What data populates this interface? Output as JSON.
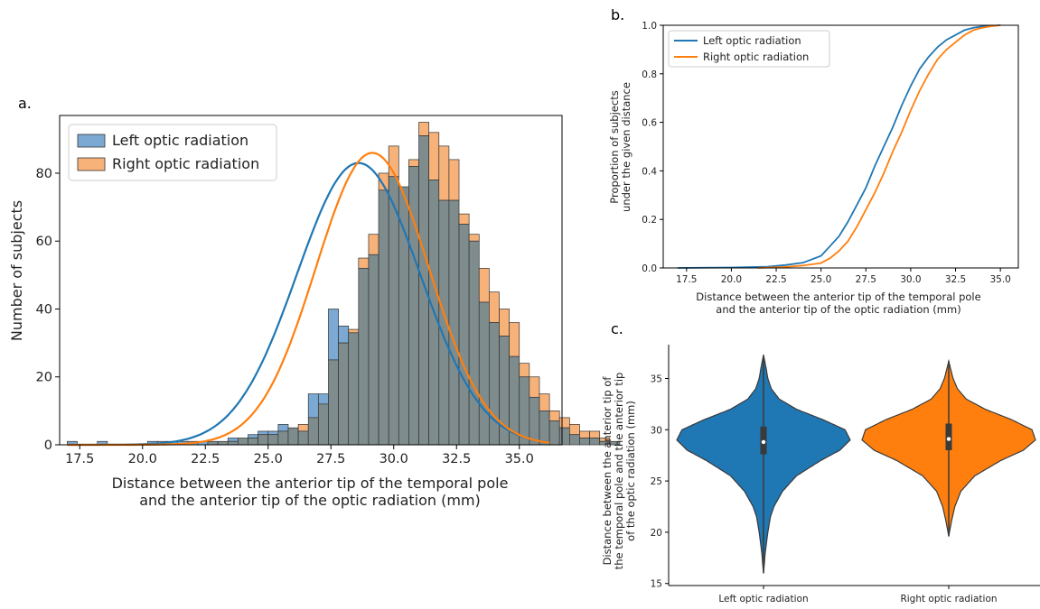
{
  "colors": {
    "left": "#1f77b4",
    "right": "#ff7f0e",
    "left_fill": "#7ba9d3",
    "right_fill": "#f7b27a",
    "overlap": "#7f8c8d"
  },
  "chart_data": [
    {
      "panel": "a.",
      "type": "bar",
      "subtype": "histogram with KDE",
      "xlabel": [
        "Distance between the anterior tip of the temporal pole",
        "and the anterior tip of the optic radiation (mm)"
      ],
      "ylabel": "Number of subjects",
      "xlim": [
        16.7,
        36.7
      ],
      "ylim": [
        0,
        97
      ],
      "x_ticks": [
        "17.5",
        "20.0",
        "22.5",
        "25.0",
        "27.5",
        "30.0",
        "32.5",
        "35.0"
      ],
      "y_ticks": [
        "0",
        "20",
        "40",
        "60",
        "80"
      ],
      "legend_position": "upper-left",
      "bin_start": 17.0,
      "bin_width": 0.4,
      "series": [
        {
          "name": "Left optic radiation",
          "color_key": "left",
          "values": [
            1,
            0,
            0,
            1,
            0,
            0,
            0,
            0,
            1,
            1,
            1,
            1,
            1,
            1,
            1,
            1,
            2,
            2,
            3,
            4,
            4,
            6,
            5,
            4,
            15,
            15,
            40,
            35,
            33,
            52,
            56,
            75,
            79,
            76,
            82,
            91,
            78,
            72,
            72,
            65,
            60,
            42,
            36,
            32,
            26,
            20,
            14,
            10,
            7,
            5,
            3,
            2,
            2,
            1,
            1,
            0
          ]
        },
        {
          "name": "Right optic radiation",
          "color_key": "right",
          "values": [
            0,
            0,
            0,
            0,
            0,
            0,
            0,
            0,
            0,
            0,
            0,
            0,
            0,
            0,
            1,
            1,
            1,
            2,
            2,
            3,
            3,
            4,
            5,
            6,
            8,
            12,
            25,
            30,
            34,
            55,
            62,
            80,
            88,
            76,
            84,
            95,
            92,
            88,
            84,
            68,
            62,
            52,
            45,
            40,
            36,
            24,
            20,
            15,
            10,
            8,
            6,
            4,
            4,
            2,
            1,
            0
          ]
        }
      ],
      "kde": [
        {
          "name": "Left optic radiation",
          "mean": 28.6,
          "sd": 2.45,
          "peak": 83
        },
        {
          "name": "Right optic radiation",
          "mean": 29.15,
          "sd": 2.25,
          "peak": 86
        }
      ]
    },
    {
      "panel": "b.",
      "type": "line",
      "subtype": "cumulative distribution",
      "xlabel": [
        "Distance between the anterior tip of the temporal pole",
        "and the anterior tip of the optic radiation (mm)"
      ],
      "ylabel": [
        "Proportion of subjects",
        "under the given distance"
      ],
      "xlim": [
        16.2,
        36.0
      ],
      "ylim": [
        0,
        1
      ],
      "x_ticks": [
        "17.5",
        "20.0",
        "22.5",
        "25.0",
        "27.5",
        "30.0",
        "32.5",
        "35.0"
      ],
      "y_ticks": [
        "0.0",
        "0.2",
        "0.4",
        "0.6",
        "0.8",
        "1.0"
      ],
      "legend_position": "upper-left",
      "series": [
        {
          "name": "Left optic radiation",
          "color_key": "left",
          "x": [
            17.0,
            20.0,
            22.0,
            23.0,
            24.0,
            25.0,
            25.5,
            26.0,
            26.5,
            27.0,
            27.5,
            28.0,
            28.5,
            29.0,
            29.5,
            30.0,
            30.5,
            31.0,
            31.5,
            32.0,
            32.5,
            33.0,
            33.5,
            34.0,
            35.0
          ],
          "y": [
            0.0,
            0.002,
            0.005,
            0.012,
            0.022,
            0.05,
            0.09,
            0.13,
            0.19,
            0.26,
            0.33,
            0.42,
            0.5,
            0.58,
            0.67,
            0.75,
            0.82,
            0.87,
            0.91,
            0.94,
            0.96,
            0.98,
            0.99,
            0.995,
            1.0
          ]
        },
        {
          "name": "Right optic radiation",
          "color_key": "right",
          "x": [
            21.5,
            23.0,
            24.0,
            25.0,
            25.5,
            26.0,
            26.5,
            27.0,
            27.5,
            28.0,
            28.5,
            29.0,
            29.5,
            30.0,
            30.5,
            31.0,
            31.5,
            32.0,
            32.5,
            33.0,
            33.5,
            34.0,
            34.5,
            35.0
          ],
          "y": [
            0.0,
            0.004,
            0.01,
            0.02,
            0.04,
            0.07,
            0.11,
            0.17,
            0.24,
            0.31,
            0.39,
            0.48,
            0.56,
            0.65,
            0.73,
            0.8,
            0.86,
            0.9,
            0.93,
            0.96,
            0.98,
            0.99,
            0.996,
            1.0
          ]
        }
      ]
    },
    {
      "panel": "c.",
      "type": "violin",
      "ylabel": [
        "Distance between the anterior tip of",
        "the temporal pole and the anterior tip",
        "of the optic radiation (mm)"
      ],
      "ylim": [
        14.8,
        38.3
      ],
      "y_ticks": [
        "15",
        "20",
        "25",
        "30",
        "35"
      ],
      "categories": [
        "Left optic radiation",
        "Right optic radiation"
      ],
      "violins": [
        {
          "category": "Left optic radiation",
          "color_key": "left",
          "min": 16.0,
          "max": 37.3,
          "q1": 27.6,
          "median": 28.8,
          "q3": 30.3,
          "profile": [
            [
              16.0,
              0.0
            ],
            [
              18.0,
              0.02
            ],
            [
              20.0,
              0.05
            ],
            [
              21.5,
              0.08
            ],
            [
              22.5,
              0.12
            ],
            [
              24.0,
              0.22
            ],
            [
              25.5,
              0.38
            ],
            [
              27.0,
              0.66
            ],
            [
              28.0,
              0.88
            ],
            [
              29.0,
              1.0
            ],
            [
              30.0,
              0.94
            ],
            [
              31.0,
              0.68
            ],
            [
              32.0,
              0.38
            ],
            [
              33.0,
              0.18
            ],
            [
              34.0,
              0.09
            ],
            [
              35.0,
              0.05
            ],
            [
              36.0,
              0.03
            ],
            [
              37.3,
              0.0
            ]
          ]
        },
        {
          "category": "Right optic radiation",
          "color_key": "right",
          "min": 19.6,
          "max": 36.7,
          "q1": 28.0,
          "median": 29.1,
          "q3": 30.6,
          "profile": [
            [
              19.6,
              0.0
            ],
            [
              21.0,
              0.03
            ],
            [
              22.5,
              0.07
            ],
            [
              24.0,
              0.14
            ],
            [
              25.5,
              0.3
            ],
            [
              27.0,
              0.6
            ],
            [
              28.0,
              0.86
            ],
            [
              29.0,
              1.0
            ],
            [
              30.0,
              0.96
            ],
            [
              31.0,
              0.72
            ],
            [
              32.0,
              0.42
            ],
            [
              33.0,
              0.2
            ],
            [
              34.0,
              0.1
            ],
            [
              35.0,
              0.05
            ],
            [
              36.0,
              0.02
            ],
            [
              36.7,
              0.0
            ]
          ]
        }
      ]
    }
  ]
}
